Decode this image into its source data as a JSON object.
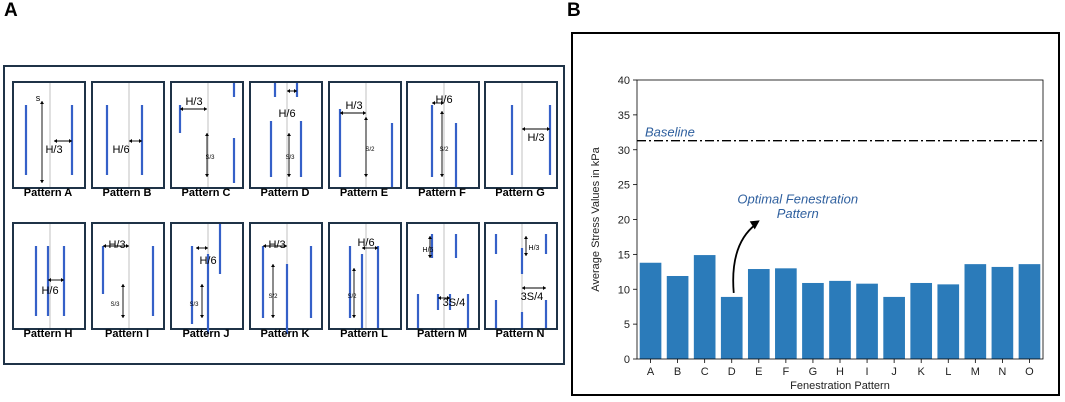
{
  "panels": {
    "a_label": "A",
    "b_label": "B"
  },
  "patterns": [
    {
      "id": "A",
      "caption": "Pattern A",
      "labels": [
        "s",
        "H/3"
      ]
    },
    {
      "id": "B",
      "caption": "Pattern B",
      "labels": [
        "H/6"
      ]
    },
    {
      "id": "C",
      "caption": "Pattern C",
      "labels": [
        "H/3",
        "S/3"
      ]
    },
    {
      "id": "D",
      "caption": "Pattern D",
      "labels": [
        "H/6",
        "S/3"
      ]
    },
    {
      "id": "E",
      "caption": "Pattern E",
      "labels": [
        "H/3",
        "S/2"
      ]
    },
    {
      "id": "F",
      "caption": "Pattern F",
      "labels": [
        "H/6",
        "S/2"
      ]
    },
    {
      "id": "G",
      "caption": "Pattern G",
      "labels": [
        "H/3"
      ]
    },
    {
      "id": "H",
      "caption": "Pattern H",
      "labels": [
        "H/6"
      ]
    },
    {
      "id": "I",
      "caption": "Pattern I",
      "labels": [
        "H/3",
        "S/3"
      ]
    },
    {
      "id": "J",
      "caption": "Pattern J",
      "labels": [
        "H/6",
        "S/3"
      ]
    },
    {
      "id": "K",
      "caption": "Pattern K",
      "labels": [
        "H/3",
        "S/2"
      ]
    },
    {
      "id": "L",
      "caption": "Pattern L",
      "labels": [
        "H/6",
        "S/2"
      ]
    },
    {
      "id": "M",
      "caption": "Pattern M",
      "labels": [
        "3S/4",
        "H/6"
      ]
    },
    {
      "id": "N",
      "caption": "Pattern N",
      "labels": [
        "3S/4",
        "H/3"
      ]
    }
  ],
  "chart_data": {
    "type": "bar",
    "categories": [
      "A",
      "B",
      "C",
      "D",
      "E",
      "F",
      "G",
      "H",
      "I",
      "J",
      "K",
      "L",
      "M",
      "N",
      "O"
    ],
    "values": [
      13.8,
      11.9,
      14.9,
      8.9,
      12.9,
      13.0,
      10.9,
      11.2,
      10.8,
      8.9,
      10.9,
      10.7,
      13.6,
      13.2,
      13.6
    ],
    "xlabel": "Fenestration Pattern",
    "ylabel": "Average Stress Values in kPa",
    "ylim": [
      0,
      40
    ],
    "yticks": [
      0,
      5,
      10,
      15,
      20,
      25,
      30,
      35,
      40
    ],
    "baseline": {
      "value": 31.3,
      "label": "Baseline"
    },
    "annotation": {
      "line1": "Optimal Fenestration",
      "line2": "Pattern",
      "target": "D"
    },
    "bar_color": "#2b7bba",
    "annotation_color": "#2e5f9e"
  }
}
